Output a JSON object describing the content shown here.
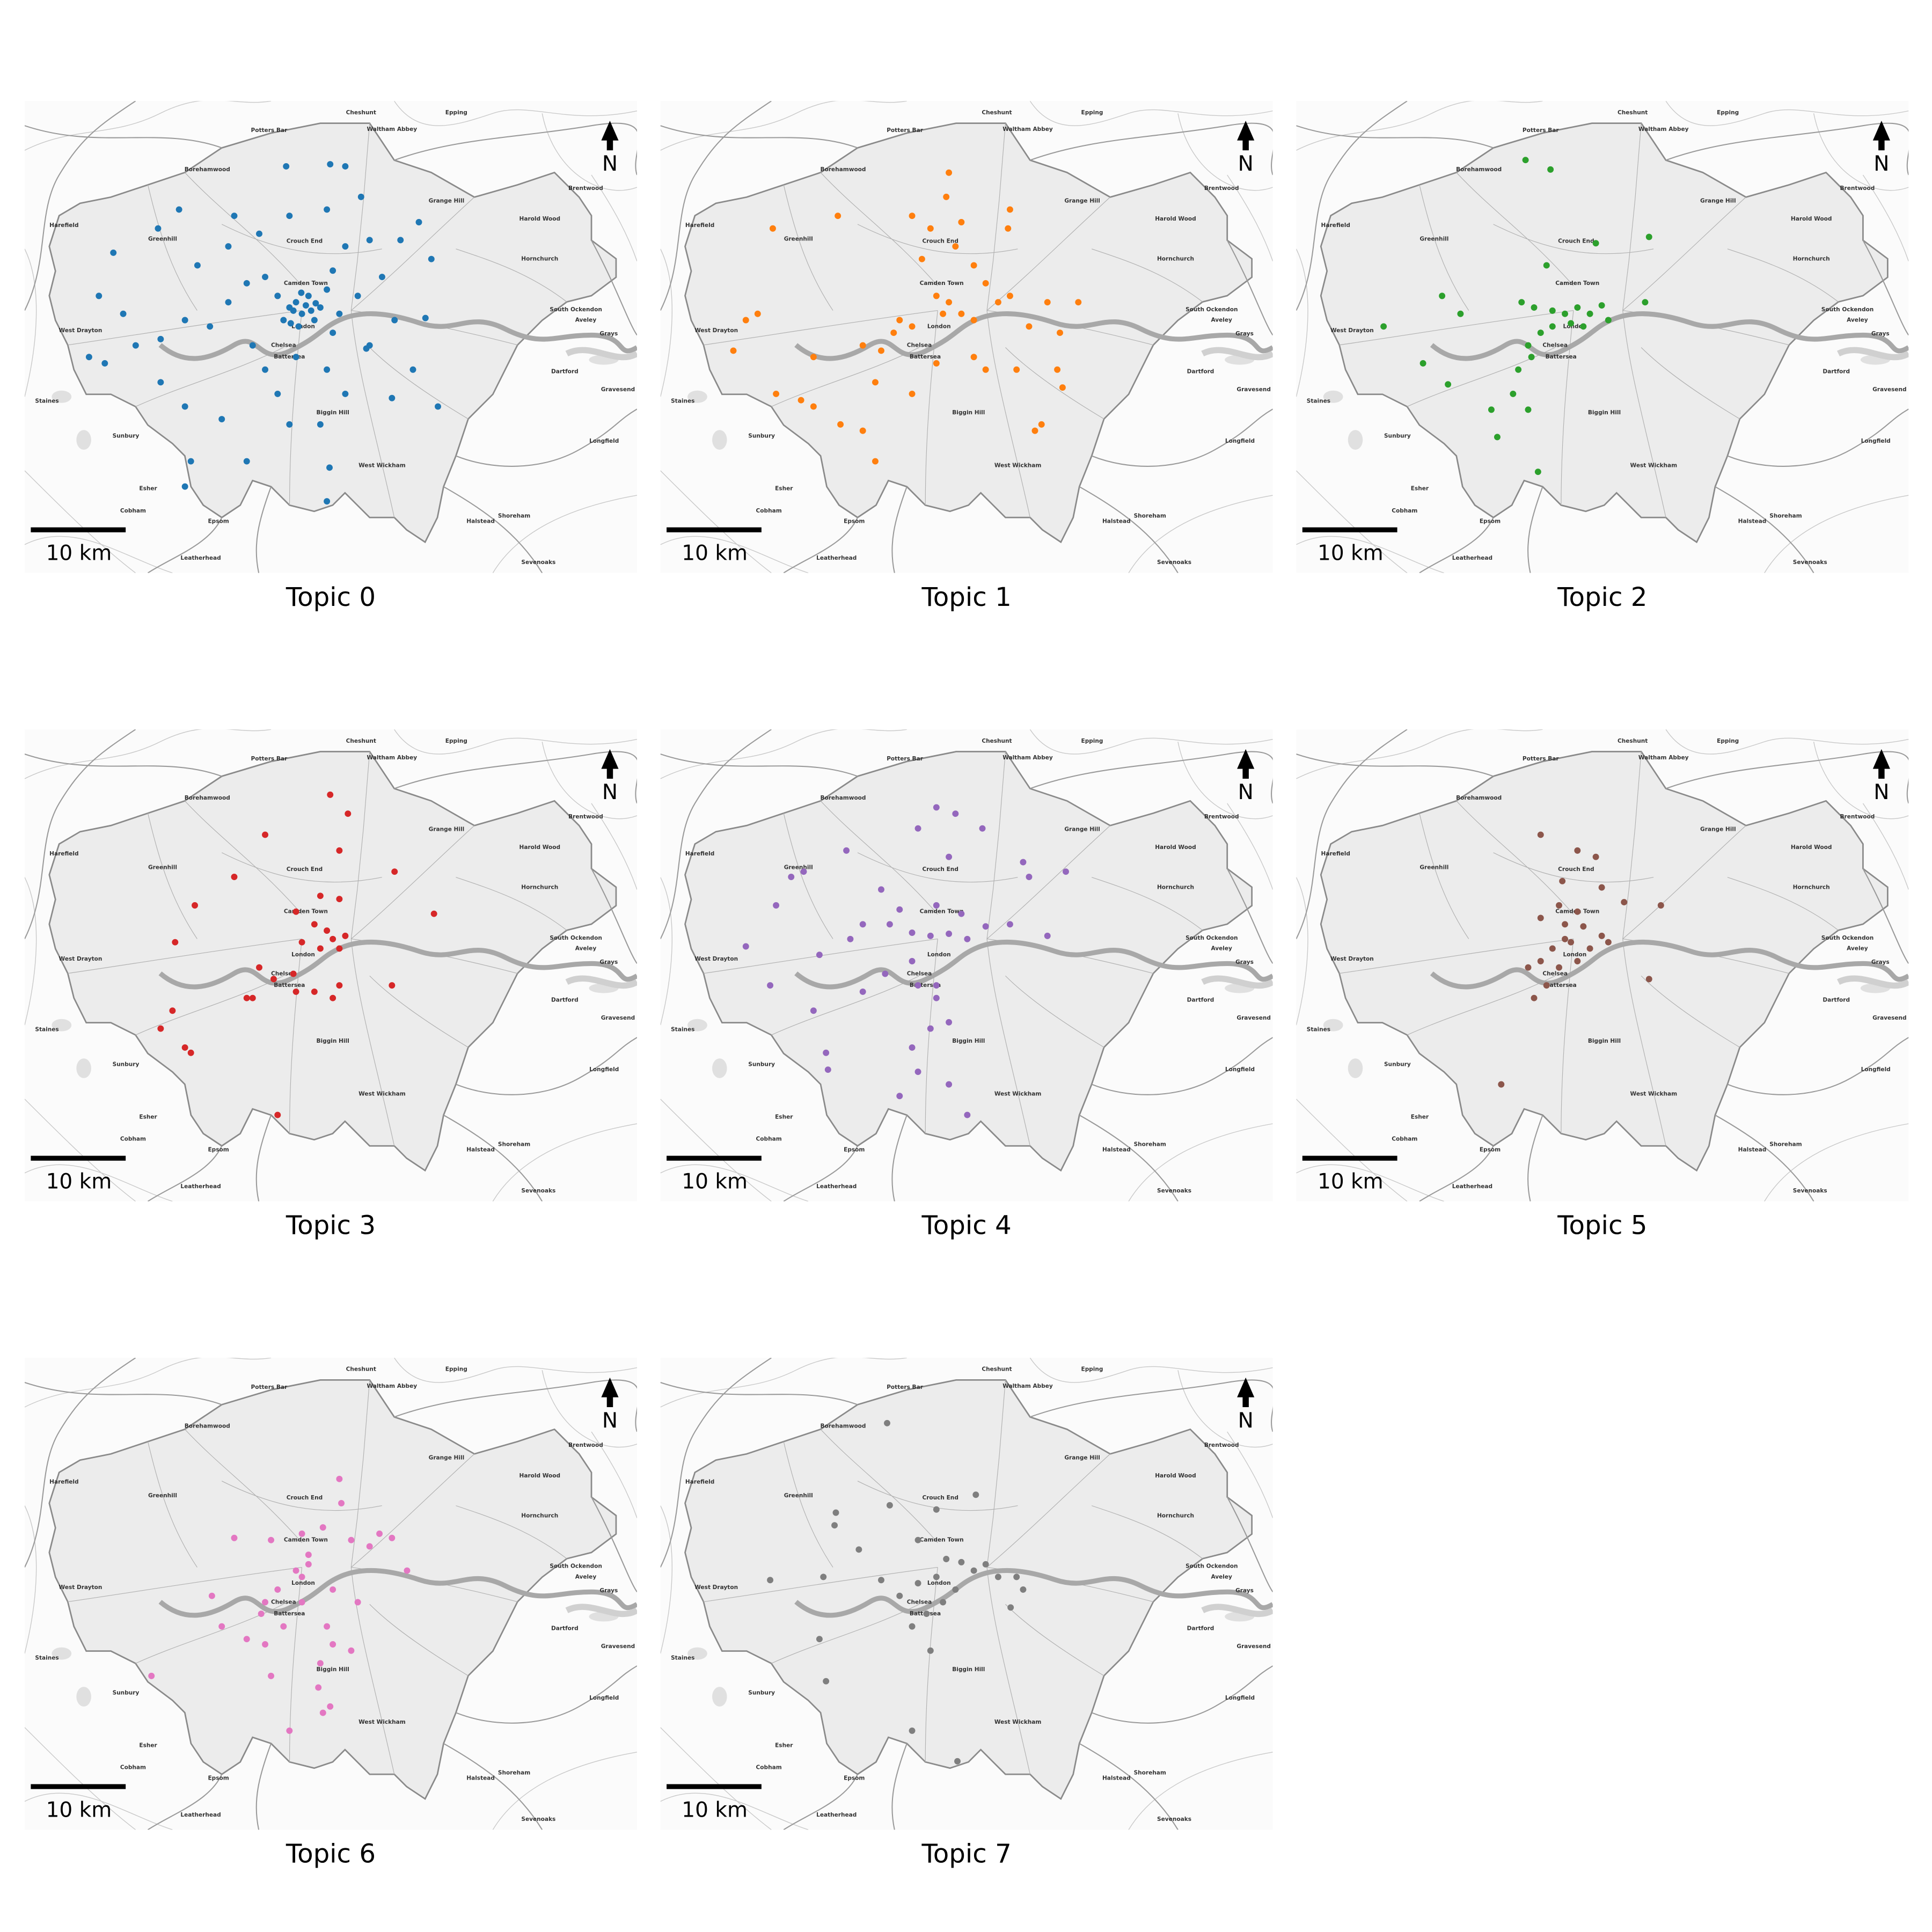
{
  "basemap": {
    "north_label": "N",
    "scale_bar_label": "10 km",
    "places": [
      {
        "name": "Cheshunt",
        "lon": -0.041,
        "lat": 51.696
      },
      {
        "name": "Epping",
        "lon": 0.104,
        "lat": 51.696
      },
      {
        "name": "Potters Bar",
        "lon": -0.181,
        "lat": 51.679
      },
      {
        "name": "Waltham Abbey",
        "lon": 0.006,
        "lat": 51.68
      },
      {
        "name": "Borehamwood",
        "lon": -0.275,
        "lat": 51.642
      },
      {
        "name": "Brentwood",
        "lon": 0.301,
        "lat": 51.624
      },
      {
        "name": "Grange Hill",
        "lon": 0.089,
        "lat": 51.612
      },
      {
        "name": "Harold Wood",
        "lon": 0.231,
        "lat": 51.595
      },
      {
        "name": "Harefield",
        "lon": -0.493,
        "lat": 51.589
      },
      {
        "name": "Greenhill",
        "lon": -0.343,
        "lat": 51.576
      },
      {
        "name": "Crouch End",
        "lon": -0.127,
        "lat": 51.574
      },
      {
        "name": "Hornchurch",
        "lon": 0.231,
        "lat": 51.557
      },
      {
        "name": "Camden Town",
        "lon": -0.125,
        "lat": 51.534
      },
      {
        "name": "South Ockendon",
        "lon": 0.286,
        "lat": 51.509
      },
      {
        "name": "Aveley",
        "lon": 0.301,
        "lat": 51.499
      },
      {
        "name": "London",
        "lon": -0.129,
        "lat": 51.493
      },
      {
        "name": "West Drayton",
        "lon": -0.468,
        "lat": 51.489
      },
      {
        "name": "Grays",
        "lon": 0.336,
        "lat": 51.486
      },
      {
        "name": "Chelsea",
        "lon": -0.159,
        "lat": 51.475
      },
      {
        "name": "Battersea",
        "lon": -0.15,
        "lat": 51.464
      },
      {
        "name": "Dartford",
        "lon": 0.269,
        "lat": 51.45
      },
      {
        "name": "Gravesend",
        "lon": 0.35,
        "lat": 51.433
      },
      {
        "name": "Staines",
        "lon": -0.519,
        "lat": 51.422
      },
      {
        "name": "Biggin Hill",
        "lon": -0.084,
        "lat": 51.411
      },
      {
        "name": "Sunbury",
        "lon": -0.399,
        "lat": 51.389
      },
      {
        "name": "Longfield",
        "lon": 0.329,
        "lat": 51.384
      },
      {
        "name": "West Wickham",
        "lon": -0.009,
        "lat": 51.361
      },
      {
        "name": "Esher",
        "lon": -0.365,
        "lat": 51.339
      },
      {
        "name": "Cobham",
        "lon": -0.388,
        "lat": 51.318
      },
      {
        "name": "Shoreham",
        "lon": 0.192,
        "lat": 51.313
      },
      {
        "name": "Epsom",
        "lon": -0.258,
        "lat": 51.308
      },
      {
        "name": "Halstead",
        "lon": 0.141,
        "lat": 51.308
      },
      {
        "name": "Leatherhead",
        "lon": -0.285,
        "lat": 51.273
      },
      {
        "name": "Sevenoaks",
        "lon": 0.229,
        "lat": 51.269
      }
    ]
  },
  "chart_data": [
    {
      "type": "scatter",
      "title": "Topic 0",
      "color": "#1f77b4",
      "xlim": [
        -0.553,
        0.379
      ],
      "ylim": [
        51.259,
        51.707
      ],
      "x": [
        -0.155,
        -0.088,
        -0.065,
        -0.15,
        -0.093,
        -0.041,
        -0.196,
        -0.234,
        -0.243,
        -0.29,
        -0.318,
        -0.35,
        -0.418,
        -0.403,
        -0.44,
        -0.455,
        -0.431,
        -0.384,
        -0.346,
        -0.309,
        -0.271,
        -0.243,
        -0.215,
        -0.187,
        -0.168,
        -0.15,
        -0.14,
        -0.131,
        -0.121,
        -0.112,
        -0.103,
        -0.093,
        -0.084,
        -0.074,
        -0.046,
        -0.028,
        -0.009,
        0.01,
        0.057,
        0.066,
        0.047,
        0.019,
        -0.028,
        -0.065,
        -0.206,
        -0.187,
        -0.168,
        -0.14,
        -0.093,
        -0.065,
        -0.103,
        -0.15,
        -0.215,
        -0.253,
        -0.309,
        -0.346,
        -0.309,
        -0.3,
        -0.089,
        -0.093,
        -0.033,
        0.038,
        0.076,
        0.006,
        -0.084,
        -0.159,
        -0.136,
        -0.144,
        -0.125,
        -0.117,
        -0.132,
        -0.11,
        -0.148
      ],
      "y": [
        51.645,
        51.647,
        51.645,
        51.598,
        51.604,
        51.616,
        51.581,
        51.598,
        51.569,
        51.551,
        51.604,
        51.586,
        51.563,
        51.505,
        51.522,
        51.464,
        51.458,
        51.475,
        51.481,
        51.499,
        51.493,
        51.516,
        51.534,
        51.54,
        51.522,
        51.511,
        51.516,
        51.505,
        51.522,
        51.499,
        51.511,
        51.528,
        51.546,
        51.505,
        51.522,
        51.475,
        51.54,
        51.499,
        51.501,
        51.557,
        51.592,
        51.575,
        51.575,
        51.569,
        51.475,
        51.452,
        51.429,
        51.464,
        51.452,
        51.429,
        51.4,
        51.4,
        51.365,
        51.405,
        51.417,
        51.44,
        51.341,
        51.365,
        51.359,
        51.327,
        51.472,
        51.452,
        51.417,
        51.425,
        51.487,
        51.499,
        51.493,
        51.508,
        51.513,
        51.508,
        51.525,
        51.515,
        51.496
      ]
    },
    {
      "type": "scatter",
      "title": "Topic 1",
      "color": "#ff7f0e",
      "xlim": [
        -0.553,
        0.379
      ],
      "ylim": [
        51.259,
        51.707
      ],
      "x": [
        -0.114,
        -0.118,
        -0.17,
        -0.142,
        -0.095,
        -0.024,
        -0.021,
        -0.283,
        -0.382,
        -0.155,
        -0.104,
        -0.076,
        -0.058,
        -0.039,
        -0.133,
        -0.114,
        -0.123,
        -0.17,
        -0.189,
        -0.198,
        -0.095,
        -0.076,
        -0.021,
        0.008,
        0.055,
        0.083,
        0.036,
        -0.217,
        -0.245,
        -0.32,
        -0.405,
        -0.423,
        -0.442,
        -0.377,
        -0.339,
        -0.32,
        -0.226,
        -0.133,
        -0.076,
        -0.058,
        -0.011,
        0.051,
        0.059,
        0.027,
        0.017,
        -0.17,
        -0.226,
        -0.245,
        -0.279
      ],
      "y": [
        51.639,
        51.616,
        51.598,
        51.586,
        51.592,
        51.586,
        51.604,
        51.598,
        51.586,
        51.557,
        51.569,
        51.551,
        51.534,
        51.516,
        51.522,
        51.516,
        51.505,
        51.493,
        51.499,
        51.487,
        51.505,
        51.499,
        51.522,
        51.493,
        51.487,
        51.516,
        51.516,
        51.47,
        51.475,
        51.464,
        51.505,
        51.499,
        51.47,
        51.429,
        51.423,
        51.417,
        51.44,
        51.458,
        51.464,
        51.452,
        51.452,
        51.452,
        51.435,
        51.4,
        51.394,
        51.429,
        51.365,
        51.394,
        51.4
      ]
    },
    {
      "type": "scatter",
      "title": "Topic 2",
      "color": "#2ca02c",
      "xlim": [
        -0.553,
        0.379
      ],
      "ylim": [
        51.259,
        51.707
      ],
      "x": [
        -0.204,
        -0.166,
        -0.097,
        -0.016,
        -0.172,
        -0.21,
        -0.191,
        -0.163,
        -0.144,
        -0.125,
        -0.106,
        -0.088,
        -0.135,
        -0.163,
        -0.116,
        -0.181,
        -0.2,
        -0.195,
        -0.215,
        -0.223,
        -0.303,
        -0.331,
        -0.42,
        -0.36,
        -0.322,
        -0.256,
        -0.2,
        -0.247,
        -0.185,
        -0.022,
        -0.078
      ],
      "y": [
        51.651,
        51.642,
        51.572,
        51.578,
        51.551,
        51.516,
        51.511,
        51.508,
        51.505,
        51.511,
        51.505,
        51.513,
        51.496,
        51.493,
        51.493,
        51.487,
        51.475,
        51.464,
        51.452,
        51.429,
        51.505,
        51.522,
        51.493,
        51.458,
        51.438,
        51.414,
        51.414,
        51.388,
        51.355,
        51.516,
        51.499
      ]
    },
    {
      "type": "scatter",
      "title": "Topic 3",
      "color": "#d62728",
      "xlim": [
        -0.553,
        0.379
      ],
      "ylim": [
        51.259,
        51.707
      ],
      "x": [
        -0.088,
        -0.061,
        -0.187,
        -0.074,
        -0.234,
        0.01,
        -0.103,
        -0.074,
        -0.294,
        -0.14,
        -0.112,
        -0.093,
        -0.084,
        -0.065,
        -0.131,
        -0.103,
        -0.074,
        0.07,
        -0.324,
        -0.196,
        -0.174,
        -0.144,
        -0.206,
        -0.14,
        -0.112,
        -0.074,
        -0.084,
        0.006,
        -0.328,
        -0.346,
        -0.309,
        -0.3,
        -0.168,
        -0.215
      ],
      "y": [
        51.645,
        51.627,
        51.607,
        51.592,
        51.567,
        51.572,
        51.549,
        51.546,
        51.54,
        51.534,
        51.522,
        51.516,
        51.508,
        51.511,
        51.505,
        51.499,
        51.499,
        51.532,
        51.505,
        51.481,
        51.47,
        51.475,
        51.452,
        51.458,
        51.458,
        51.464,
        51.452,
        51.464,
        51.44,
        51.423,
        51.405,
        51.4,
        51.341,
        51.452
      ]
    },
    {
      "type": "scatter",
      "title": "Topic 4",
      "color": "#9467bd",
      "xlim": [
        -0.553,
        0.379
      ],
      "ylim": [
        51.259,
        51.707
      ],
      "x": [
        -0.133,
        -0.104,
        -0.161,
        -0.063,
        -0.27,
        -0.335,
        -0.354,
        -0.114,
        -0.001,
        0.008,
        0.064,
        -0.217,
        -0.189,
        -0.133,
        -0.095,
        -0.204,
        -0.17,
        -0.142,
        -0.114,
        -0.086,
        -0.058,
        -0.021,
        0.036,
        -0.245,
        -0.264,
        -0.311,
        -0.377,
        -0.423,
        -0.386,
        -0.32,
        -0.245,
        -0.211,
        -0.161,
        -0.133,
        -0.114,
        -0.142,
        -0.17,
        -0.161,
        -0.114,
        -0.086,
        -0.301,
        -0.298,
        -0.189,
        -0.133,
        -0.17
      ],
      "y": [
        51.633,
        51.627,
        51.613,
        51.613,
        51.592,
        51.572,
        51.567,
        51.586,
        51.581,
        51.567,
        51.572,
        51.555,
        51.536,
        51.54,
        51.532,
        51.522,
        51.514,
        51.511,
        51.513,
        51.508,
        51.52,
        51.522,
        51.511,
        51.522,
        51.508,
        51.493,
        51.54,
        51.501,
        51.464,
        51.44,
        51.458,
        51.475,
        51.464,
        51.452,
        51.429,
        51.423,
        51.405,
        51.382,
        51.37,
        51.341,
        51.4,
        51.384,
        51.359,
        51.464,
        51.487
      ]
    },
    {
      "type": "scatter",
      "title": "Topic 5",
      "color": "#8c564b",
      "xlim": [
        -0.553,
        0.379
      ],
      "ylim": [
        51.259,
        51.707
      ],
      "x": [
        -0.181,
        -0.125,
        -0.097,
        -0.148,
        -0.088,
        -0.054,
        0.002,
        -0.153,
        -0.125,
        -0.181,
        -0.144,
        -0.116,
        -0.088,
        -0.135,
        -0.163,
        -0.106,
        -0.181,
        -0.153,
        -0.125,
        -0.172,
        -0.191,
        -0.2,
        -0.016,
        -0.241,
        -0.078,
        -0.144
      ],
      "y": [
        51.607,
        51.592,
        51.586,
        51.563,
        51.557,
        51.543,
        51.54,
        51.54,
        51.534,
        51.528,
        51.522,
        51.52,
        51.511,
        51.505,
        51.499,
        51.499,
        51.487,
        51.481,
        51.487,
        51.464,
        51.452,
        51.481,
        51.47,
        51.37,
        51.505,
        51.508
      ]
    },
    {
      "type": "scatter",
      "title": "Topic 6",
      "color": "#e377c2",
      "xlim": [
        -0.553,
        0.379
      ],
      "ylim": [
        51.259,
        51.707
      ],
      "x": [
        -0.074,
        -0.071,
        -0.234,
        -0.178,
        -0.131,
        -0.121,
        -0.099,
        -0.056,
        -0.028,
        -0.013,
        0.006,
        0.029,
        -0.14,
        -0.131,
        -0.121,
        -0.168,
        -0.187,
        -0.193,
        -0.131,
        -0.084,
        -0.046,
        -0.093,
        -0.084,
        -0.253,
        -0.215,
        -0.187,
        -0.159,
        -0.103,
        -0.056,
        -0.106,
        -0.099,
        -0.088,
        -0.15,
        -0.178,
        -0.36,
        -0.268
      ],
      "y": [
        51.592,
        51.569,
        51.536,
        51.534,
        51.54,
        51.52,
        51.546,
        51.534,
        51.528,
        51.54,
        51.536,
        51.505,
        51.505,
        51.499,
        51.511,
        51.487,
        51.475,
        51.464,
        51.475,
        51.487,
        51.475,
        51.452,
        51.435,
        51.452,
        51.44,
        51.435,
        51.452,
        51.417,
        51.429,
        51.394,
        51.37,
        51.376,
        51.353,
        51.405,
        51.405,
        51.481
      ]
    },
    {
      "type": "scatter",
      "title": "Topic 7",
      "color": "#7f7f7f",
      "xlim": [
        -0.553,
        0.379
      ],
      "ylim": [
        51.259,
        51.707
      ],
      "x": [
        -0.208,
        -0.073,
        -0.133,
        -0.286,
        -0.288,
        -0.204,
        -0.251,
        -0.161,
        -0.118,
        -0.095,
        -0.076,
        -0.058,
        -0.039,
        -0.011,
        -0.001,
        -0.133,
        -0.104,
        -0.161,
        -0.189,
        -0.123,
        -0.148,
        -0.17,
        -0.142,
        -0.02,
        -0.386,
        -0.305,
        -0.311,
        -0.301,
        -0.17,
        -0.101,
        -0.217
      ],
      "y": [
        51.645,
        51.577,
        51.563,
        51.56,
        51.548,
        51.567,
        51.525,
        51.534,
        51.516,
        51.513,
        51.505,
        51.511,
        51.499,
        51.499,
        51.487,
        51.499,
        51.487,
        51.493,
        51.481,
        51.475,
        51.464,
        51.452,
        51.429,
        51.47,
        51.496,
        51.499,
        51.44,
        51.4,
        51.353,
        51.324,
        51.496
      ]
    }
  ]
}
